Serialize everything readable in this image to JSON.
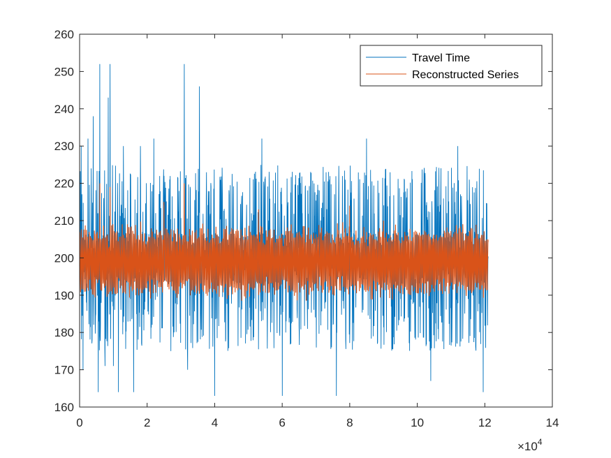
{
  "chart_data": {
    "type": "line",
    "title": "",
    "xlabel": "",
    "ylabel": "",
    "xlim": [
      0,
      14
    ],
    "ylim": [
      160,
      260
    ],
    "x_multiplier": {
      "base": "×10",
      "exponent": "4"
    },
    "x_ticks": [
      0,
      2,
      4,
      6,
      8,
      10,
      12,
      14
    ],
    "y_ticks": [
      160,
      170,
      180,
      190,
      200,
      210,
      220,
      230,
      240,
      250,
      260
    ],
    "x_tick_labels": [
      "0",
      "2",
      "4",
      "6",
      "8",
      "10",
      "12",
      "14"
    ],
    "y_tick_labels": [
      "160",
      "170",
      "180",
      "190",
      "200",
      "210",
      "220",
      "230",
      "240",
      "250",
      "260"
    ],
    "grid": false,
    "legend_position": "top-right",
    "x_end": 12.1,
    "series": [
      {
        "name": "Travel Time",
        "color": "#0072BD",
        "approx_mean": 200,
        "typical_range": [
          193,
          207
        ],
        "spikes": [
          {
            "x": 0.05,
            "y": 230
          },
          {
            "x": 0.1,
            "y": 170
          },
          {
            "x": 0.25,
            "y": 232
          },
          {
            "x": 0.4,
            "y": 238
          },
          {
            "x": 0.55,
            "y": 164
          },
          {
            "x": 0.6,
            "y": 252
          },
          {
            "x": 0.75,
            "y": 171
          },
          {
            "x": 0.85,
            "y": 243
          },
          {
            "x": 0.9,
            "y": 252
          },
          {
            "x": 1.0,
            "y": 171
          },
          {
            "x": 1.15,
            "y": 164
          },
          {
            "x": 1.3,
            "y": 230
          },
          {
            "x": 1.6,
            "y": 164
          },
          {
            "x": 1.8,
            "y": 230
          },
          {
            "x": 2.2,
            "y": 232
          },
          {
            "x": 2.5,
            "y": 222
          },
          {
            "x": 2.7,
            "y": 175
          },
          {
            "x": 3.1,
            "y": 252
          },
          {
            "x": 3.55,
            "y": 246
          },
          {
            "x": 3.2,
            "y": 170
          },
          {
            "x": 4.0,
            "y": 163
          },
          {
            "x": 5.4,
            "y": 232
          },
          {
            "x": 6.0,
            "y": 163
          },
          {
            "x": 7.6,
            "y": 163
          },
          {
            "x": 8.5,
            "y": 232
          },
          {
            "x": 10.4,
            "y": 167
          },
          {
            "x": 11.2,
            "y": 230
          },
          {
            "x": 11.95,
            "y": 164
          }
        ]
      },
      {
        "name": "Reconstructed Series",
        "color": "#D95319",
        "approx_mean": 200,
        "typical_range": [
          190,
          208
        ],
        "peaks": [
          {
            "x": 0.6,
            "y": 220
          },
          {
            "x": 0.9,
            "y": 219
          },
          {
            "x": 2.5,
            "y": 215
          },
          {
            "x": 3.1,
            "y": 220
          },
          {
            "x": 5.3,
            "y": 213
          },
          {
            "x": 8.0,
            "y": 214
          },
          {
            "x": 9.0,
            "y": 210
          }
        ]
      }
    ]
  }
}
